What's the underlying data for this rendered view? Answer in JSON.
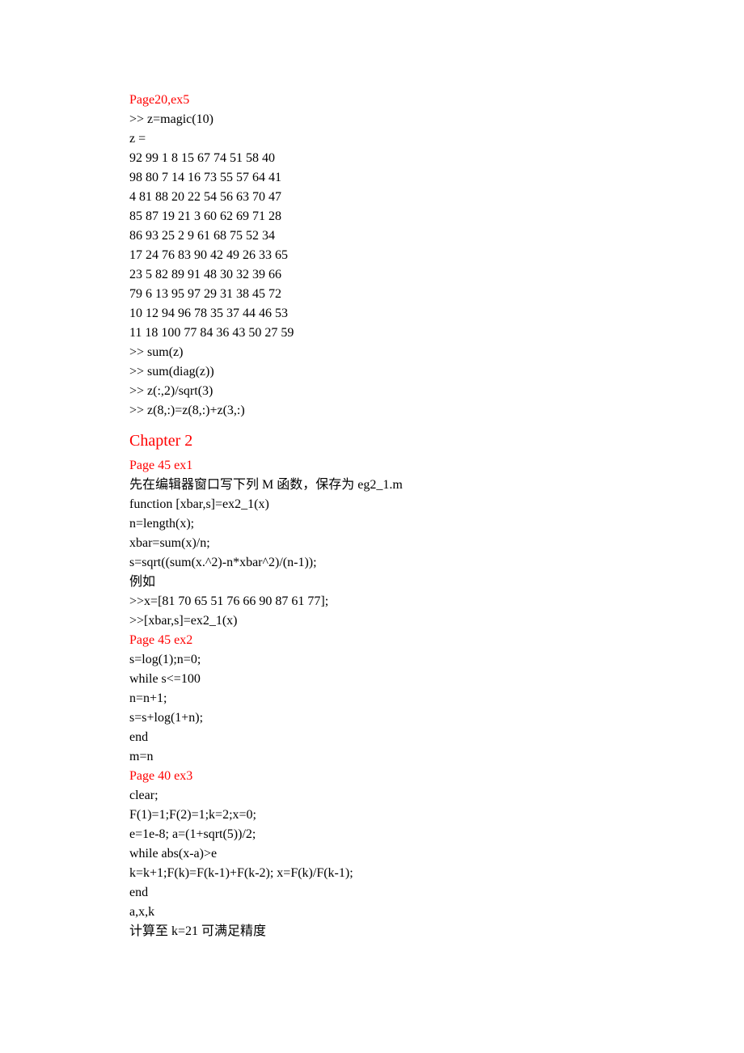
{
  "colors": {
    "heading_red": "#ff0000",
    "body_text": "#000000",
    "background": "#ffffff"
  },
  "typography": {
    "body_font": "Times New Roman, SimSun, serif",
    "body_size_pt": 12,
    "chapter_size_pt": 16,
    "line_height": 1.5
  },
  "sections": [
    {
      "heading": "Page20,ex5",
      "heading_class": "red-heading",
      "lines": [
        ">> z=magic(10)",
        "z =",
        "92 99 1 8 15 67 74 51 58 40",
        "98 80 7 14 16 73 55 57 64 41",
        "4 81 88 20 22 54 56 63 70 47",
        "85 87 19 21 3 60 62 69 71 28",
        "86 93 25 2 9 61 68 75 52 34",
        "17 24 76 83 90 42 49 26 33 65",
        "23 5 82 89 91 48 30 32 39 66",
        "79 6 13 95 97 29 31 38 45 72",
        "10 12 94 96 78 35 37 44 46 53",
        "11 18 100 77 84 36 43 50 27 59",
        ">> sum(z)",
        ">> sum(diag(z))",
        ">> z(:,2)/sqrt(3)",
        ">> z(8,:)=z(8,:)+z(3,:)"
      ]
    },
    {
      "heading": "Chapter 2",
      "heading_class": "chapter-heading",
      "lines": []
    },
    {
      "heading": "Page 45 ex1",
      "heading_class": "red-heading",
      "lines": [
        "先在编辑器窗口写下列 M 函数，保存为 eg2_1.m",
        "function [xbar,s]=ex2_1(x)",
        "n=length(x);",
        "xbar=sum(x)/n;",
        "s=sqrt((sum(x.^2)-n*xbar^2)/(n-1));",
        "例如",
        ">>x=[81 70 65 51 76 66 90 87 61 77];",
        ">>[xbar,s]=ex2_1(x)"
      ]
    },
    {
      "heading": "Page 45 ex2",
      "heading_class": "red-heading",
      "lines": [
        "s=log(1);n=0;",
        "while s<=100",
        "n=n+1;",
        "s=s+log(1+n);",
        "end",
        "m=n"
      ]
    },
    {
      "heading": "Page 40 ex3",
      "heading_class": "red-heading",
      "lines": [
        "clear;",
        "F(1)=1;F(2)=1;k=2;x=0;",
        "e=1e-8; a=(1+sqrt(5))/2;",
        "while abs(x-a)>e",
        "k=k+1;F(k)=F(k-1)+F(k-2); x=F(k)/F(k-1);",
        "end",
        "a,x,k",
        "计算至 k=21 可满足精度"
      ]
    }
  ]
}
